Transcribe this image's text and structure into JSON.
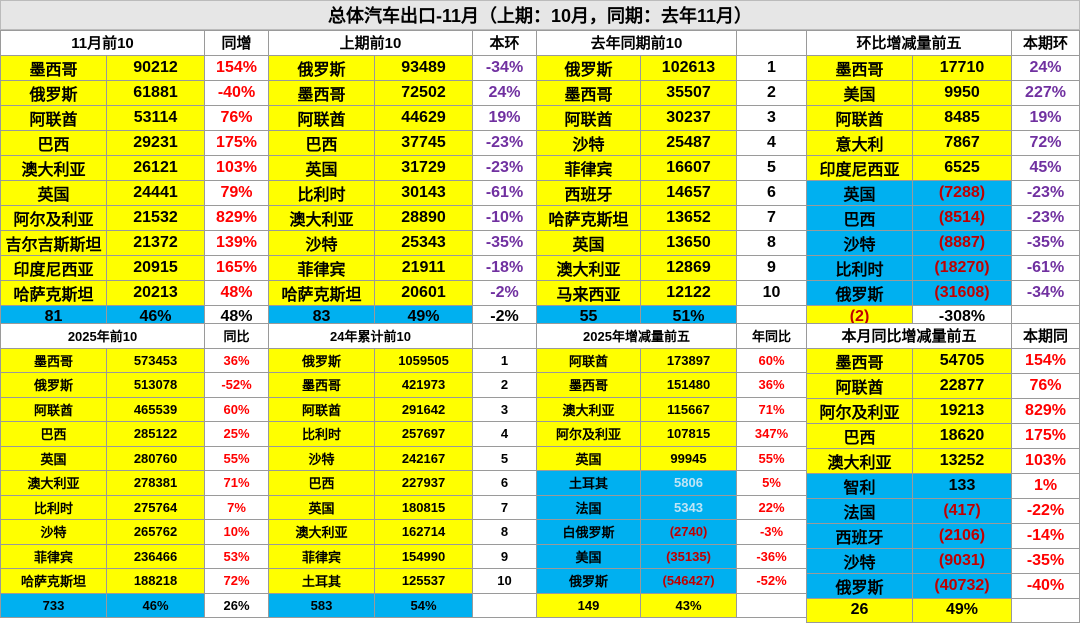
{
  "title": "总体汽车出口-11月（上期：10月，同期：去年11月）",
  "colors": {
    "yellow": "#ffff00",
    "blue": "#00b0f0",
    "red": "#ff0000",
    "purple": "#7030a0"
  },
  "top_headers": {
    "nov_top10": "11月前10",
    "yoy": "同增",
    "prev_top10": "上期前10",
    "mom": "本环",
    "last_year_top10": "去年同期前10",
    "mom_change_top5": "环比增减量前五",
    "this_mom": "本期环"
  },
  "bottom_headers": {
    "y2025_top10": "2025年前10",
    "yoy": "同比",
    "y2024_cum_top10": "24年累计前10",
    "y2025_change_top5": "2025年增减量前五",
    "annual_yoy": "年同比",
    "month_yoy_change_top5": "本月同比增减量前五",
    "this_yoy": "本期同"
  },
  "nov_top10": [
    {
      "country": "墨西哥",
      "value": "90212",
      "pct": "154%"
    },
    {
      "country": "俄罗斯",
      "value": "61881",
      "pct": "-40%"
    },
    {
      "country": "阿联酋",
      "value": "53114",
      "pct": "76%"
    },
    {
      "country": "巴西",
      "value": "29231",
      "pct": "175%"
    },
    {
      "country": "澳大利亚",
      "value": "26121",
      "pct": "103%"
    },
    {
      "country": "英国",
      "value": "24441",
      "pct": "79%"
    },
    {
      "country": "阿尔及利亚",
      "value": "21532",
      "pct": "829%"
    },
    {
      "country": "吉尔吉斯斯坦",
      "value": "21372",
      "pct": "139%"
    },
    {
      "country": "印度尼西亚",
      "value": "20915",
      "pct": "165%"
    },
    {
      "country": "哈萨克斯坦",
      "value": "20213",
      "pct": "48%"
    }
  ],
  "nov_summary": {
    "a": "81",
    "b": "46%",
    "c": "48%"
  },
  "prev_top10": [
    {
      "country": "俄罗斯",
      "value": "93489",
      "pct": "-34%"
    },
    {
      "country": "墨西哥",
      "value": "72502",
      "pct": "24%"
    },
    {
      "country": "阿联酋",
      "value": "44629",
      "pct": "19%"
    },
    {
      "country": "巴西",
      "value": "37745",
      "pct": "-23%"
    },
    {
      "country": "英国",
      "value": "31729",
      "pct": "-23%"
    },
    {
      "country": "比利时",
      "value": "30143",
      "pct": "-61%"
    },
    {
      "country": "澳大利亚",
      "value": "28890",
      "pct": "-10%"
    },
    {
      "country": "沙特",
      "value": "25343",
      "pct": "-35%"
    },
    {
      "country": "菲律宾",
      "value": "21911",
      "pct": "-18%"
    },
    {
      "country": "哈萨克斯坦",
      "value": "20601",
      "pct": "-2%"
    }
  ],
  "prev_summary": {
    "a": "83",
    "b": "49%",
    "c": "-2%"
  },
  "last_year_top10": [
    {
      "country": "俄罗斯",
      "value": "102613",
      "rank": "1"
    },
    {
      "country": "墨西哥",
      "value": "35507",
      "rank": "2"
    },
    {
      "country": "阿联酋",
      "value": "30237",
      "rank": "3"
    },
    {
      "country": "沙特",
      "value": "25487",
      "rank": "4"
    },
    {
      "country": "菲律宾",
      "value": "16607",
      "rank": "5"
    },
    {
      "country": "西班牙",
      "value": "14657",
      "rank": "6"
    },
    {
      "country": "哈萨克斯坦",
      "value": "13652",
      "rank": "7"
    },
    {
      "country": "英国",
      "value": "13650",
      "rank": "8"
    },
    {
      "country": "澳大利亚",
      "value": "12869",
      "rank": "9"
    },
    {
      "country": "马来西亚",
      "value": "12122",
      "rank": "10"
    }
  ],
  "last_year_summary": {
    "a": "55",
    "b": "51%"
  },
  "mom_change": [
    {
      "country": "墨西哥",
      "value": "17710",
      "pct": "24%"
    },
    {
      "country": "美国",
      "value": "9950",
      "pct": "227%"
    },
    {
      "country": "阿联酋",
      "value": "8485",
      "pct": "19%"
    },
    {
      "country": "意大利",
      "value": "7867",
      "pct": "72%"
    },
    {
      "country": "印度尼西亚",
      "value": "6525",
      "pct": "45%"
    },
    {
      "country": "英国",
      "value": "(7288)",
      "pct": "-23%"
    },
    {
      "country": "巴西",
      "value": "(8514)",
      "pct": "-23%"
    },
    {
      "country": "沙特",
      "value": "(8887)",
      "pct": "-35%"
    },
    {
      "country": "比利时",
      "value": "(18270)",
      "pct": "-61%"
    },
    {
      "country": "俄罗斯",
      "value": "(31608)",
      "pct": "-34%"
    }
  ],
  "mom_summary": {
    "a": "(2)",
    "b": "-308%"
  },
  "y2025_top10": [
    {
      "country": "墨西哥",
      "value": "573453",
      "pct": "36%"
    },
    {
      "country": "俄罗斯",
      "value": "513078",
      "pct": "-52%"
    },
    {
      "country": "阿联酋",
      "value": "465539",
      "pct": "60%"
    },
    {
      "country": "巴西",
      "value": "285122",
      "pct": "25%"
    },
    {
      "country": "英国",
      "value": "280760",
      "pct": "55%"
    },
    {
      "country": "澳大利亚",
      "value": "278381",
      "pct": "71%"
    },
    {
      "country": "比利时",
      "value": "275764",
      "pct": "7%"
    },
    {
      "country": "沙特",
      "value": "265762",
      "pct": "10%"
    },
    {
      "country": "菲律宾",
      "value": "236466",
      "pct": "53%"
    },
    {
      "country": "哈萨克斯坦",
      "value": "188218",
      "pct": "72%"
    }
  ],
  "y2025_summary": {
    "a": "733",
    "b": "46%",
    "c": "26%"
  },
  "y2024_top10": [
    {
      "country": "俄罗斯",
      "value": "1059505",
      "rank": "1"
    },
    {
      "country": "墨西哥",
      "value": "421973",
      "rank": "2"
    },
    {
      "country": "阿联酋",
      "value": "291642",
      "rank": "3"
    },
    {
      "country": "比利时",
      "value": "257697",
      "rank": "4"
    },
    {
      "country": "沙特",
      "value": "242167",
      "rank": "5"
    },
    {
      "country": "巴西",
      "value": "227937",
      "rank": "6"
    },
    {
      "country": "英国",
      "value": "180815",
      "rank": "7"
    },
    {
      "country": "澳大利亚",
      "value": "162714",
      "rank": "8"
    },
    {
      "country": "菲律宾",
      "value": "154990",
      "rank": "9"
    },
    {
      "country": "土耳其",
      "value": "125537",
      "rank": "10"
    }
  ],
  "y2024_summary": {
    "a": "583",
    "b": "54%"
  },
  "y2025_change": [
    {
      "country": "阿联酋",
      "value": "173897",
      "pct": "60%"
    },
    {
      "country": "墨西哥",
      "value": "151480",
      "pct": "36%"
    },
    {
      "country": "澳大利亚",
      "value": "115667",
      "pct": "71%"
    },
    {
      "country": "阿尔及利亚",
      "value": "107815",
      "pct": "347%"
    },
    {
      "country": "英国",
      "value": "99945",
      "pct": "55%"
    },
    {
      "country": "土耳其",
      "value": "5806",
      "pct": "5%"
    },
    {
      "country": "法国",
      "value": "5343",
      "pct": "22%"
    },
    {
      "country": "白俄罗斯",
      "value": "(2740)",
      "pct": "-3%"
    },
    {
      "country": "美国",
      "value": "(35135)",
      "pct": "-36%"
    },
    {
      "country": "俄罗斯",
      "value": "(546427)",
      "pct": "-52%"
    }
  ],
  "y2025_change_summary": {
    "a": "149",
    "b": "43%"
  },
  "month_yoy_change": [
    {
      "country": "墨西哥",
      "value": "54705",
      "pct": "154%"
    },
    {
      "country": "阿联酋",
      "value": "22877",
      "pct": "76%"
    },
    {
      "country": "阿尔及利亚",
      "value": "19213",
      "pct": "829%"
    },
    {
      "country": "巴西",
      "value": "18620",
      "pct": "175%"
    },
    {
      "country": "澳大利亚",
      "value": "13252",
      "pct": "103%"
    },
    {
      "country": "智利",
      "value": "133",
      "pct": "1%"
    },
    {
      "country": "法国",
      "value": "(417)",
      "pct": "-22%"
    },
    {
      "country": "西班牙",
      "value": "(2106)",
      "pct": "-14%"
    },
    {
      "country": "沙特",
      "value": "(9031)",
      "pct": "-35%"
    },
    {
      "country": "俄罗斯",
      "value": "(40732)",
      "pct": "-40%"
    }
  ],
  "month_yoy_summary": {
    "a": "26",
    "b": "49%"
  }
}
